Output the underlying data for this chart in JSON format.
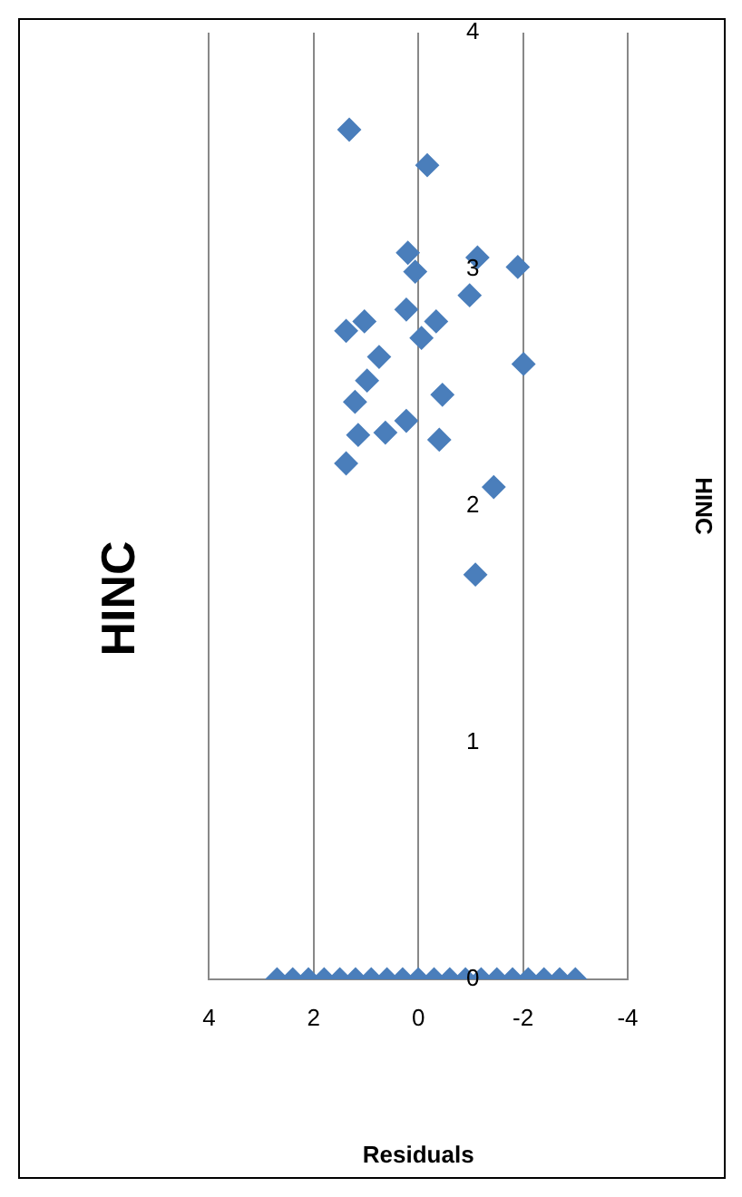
{
  "chart_data": {
    "type": "scatter",
    "title": "HINC",
    "xlabel": "Residuals",
    "ylabel": "HINC",
    "x": [
      1.32,
      -0.17,
      0.2,
      0.06,
      -1.13,
      -1.9,
      -0.98,
      0.23,
      -0.34,
      -0.06,
      1.38,
      1.03,
      -2.01,
      0.75,
      0.98,
      1.21,
      -0.46,
      0.23,
      0.63,
      1.15,
      -0.4,
      1.38,
      -1.44,
      -1.09,
      2.7,
      2.4,
      2.1,
      1.8,
      1.5,
      1.2,
      0.9,
      0.6,
      0.3,
      0,
      -0.3,
      -0.6,
      -0.9,
      -1.2,
      -1.5,
      -1.8,
      -2.1,
      -2.4,
      -2.7,
      -3.0
    ],
    "values": [
      3.59,
      3.44,
      3.07,
      2.99,
      3.05,
      3.01,
      2.89,
      2.83,
      2.78,
      2.71,
      2.74,
      2.78,
      2.6,
      2.63,
      2.53,
      2.44,
      2.47,
      2.36,
      2.31,
      2.3,
      2.28,
      2.18,
      2.08,
      1.71,
      0,
      0,
      0,
      0,
      0,
      0,
      0,
      0,
      0,
      0,
      0,
      0,
      0,
      0,
      0,
      0,
      0,
      0,
      0,
      0
    ],
    "color": "#4a7ebb",
    "marker": "diamond",
    "grid": "x",
    "legend": false,
    "xlim": [
      4,
      -4
    ],
    "xticks": [
      4,
      2,
      0,
      -2,
      -4
    ],
    "ylim": [
      0,
      4
    ],
    "yticks": [
      0,
      1,
      2,
      3,
      4
    ]
  }
}
